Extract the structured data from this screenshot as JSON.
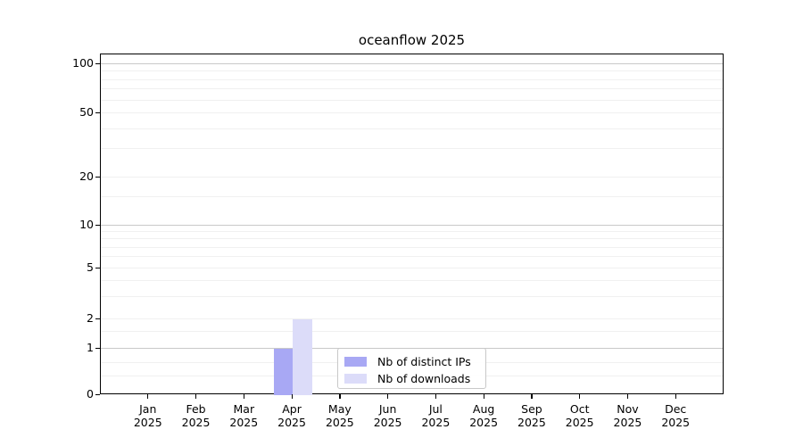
{
  "title": "oceanflow 2025",
  "chart_data": {
    "type": "bar",
    "title": "oceanflow 2025",
    "categories": [
      "Jan 2025",
      "Feb 2025",
      "Mar 2025",
      "Apr 2025",
      "May 2025",
      "Jun 2025",
      "Jul 2025",
      "Aug 2025",
      "Sep 2025",
      "Oct 2025",
      "Nov 2025",
      "Dec 2025"
    ],
    "series": [
      {
        "name": "Nb of distinct IPs",
        "color": "#a8a8f4",
        "values": [
          0,
          0,
          0,
          1,
          0,
          0,
          0,
          0,
          0,
          0,
          0,
          0
        ]
      },
      {
        "name": "Nb of downloads",
        "color": "#dcdcf9",
        "values": [
          0,
          0,
          0,
          2,
          0,
          0,
          0,
          0,
          0,
          0,
          0,
          0
        ]
      }
    ],
    "xlabel": "",
    "ylabel": "",
    "yscale": "asinh",
    "ylim": [
      0,
      100
    ],
    "yticks": [
      0,
      1,
      2,
      5,
      10,
      20,
      50,
      100
    ],
    "major_gridline_values": [
      1,
      10,
      100
    ],
    "minor_gridline_values": [
      0.4,
      0.7,
      1.5,
      3,
      4,
      6,
      7,
      8,
      9,
      15,
      30,
      40,
      60,
      70,
      80,
      90
    ],
    "grid": "horizontal",
    "legend_position": "lower center"
  },
  "colors": {
    "background": "#ffffff",
    "axis": "#000000",
    "grid_major": "#c9c9c9",
    "grid_minor": "#f0f0f0",
    "text": "#000000",
    "legend_border": "#c8c8c8"
  }
}
